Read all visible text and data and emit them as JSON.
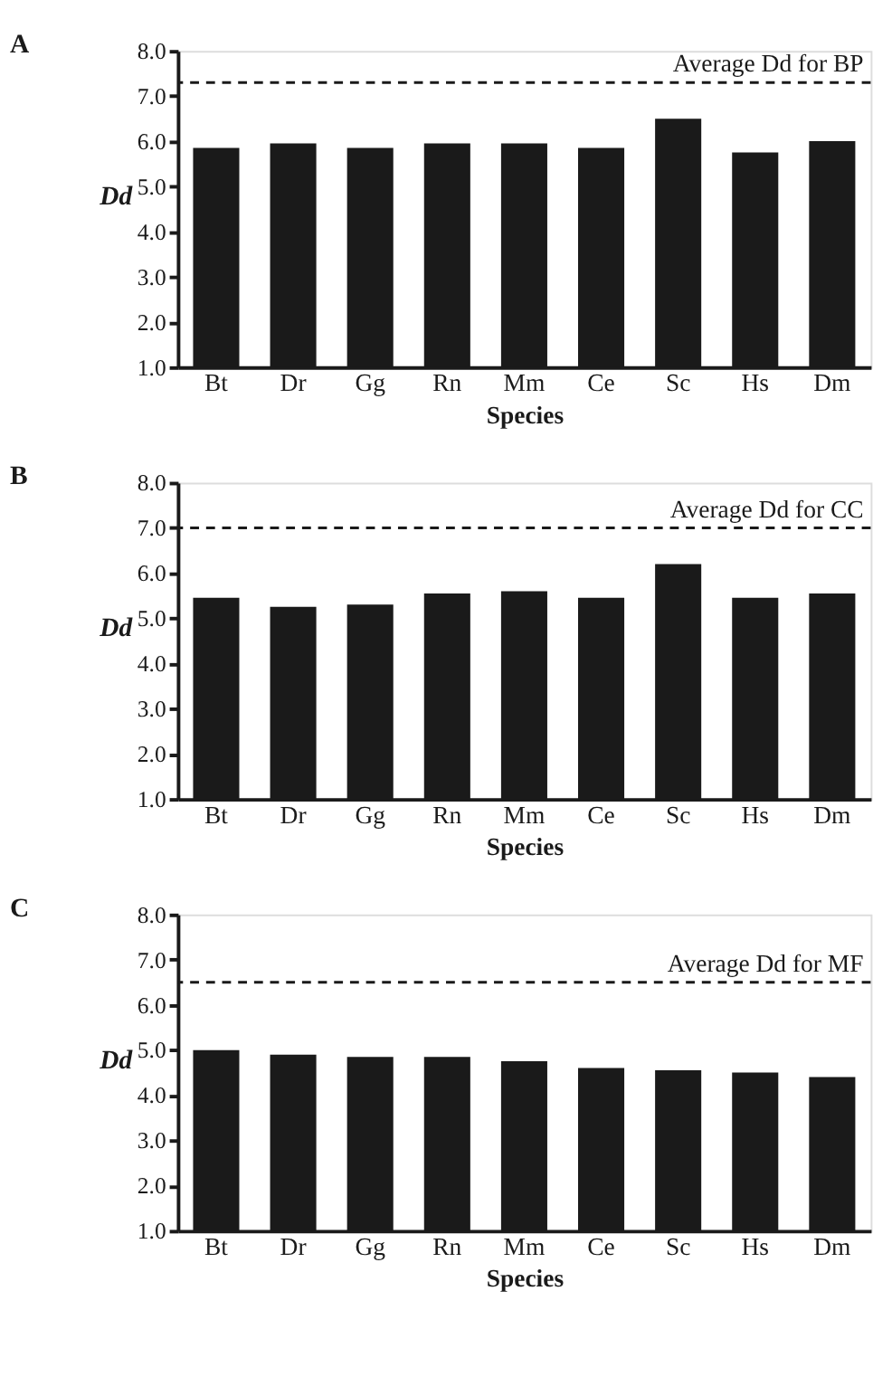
{
  "chart_data": [
    {
      "type": "bar",
      "title": "A",
      "xlabel": "Species",
      "ylabel": "Dd",
      "categories": [
        "Bt",
        "Dr",
        "Gg",
        "Rn",
        "Mm",
        "Ce",
        "Sc",
        "Hs",
        "Dm"
      ],
      "values": [
        5.85,
        5.95,
        5.85,
        5.95,
        5.95,
        5.85,
        6.5,
        5.75,
        6.0
      ],
      "color": "#1a1a1a",
      "ylim": [
        1,
        8
      ],
      "yticks": [
        {
          "value": 1,
          "label": "1.0"
        },
        {
          "value": 2,
          "label": "2.0"
        },
        {
          "value": 3,
          "label": "3.0"
        },
        {
          "value": 4,
          "label": "4.0"
        },
        {
          "value": 5,
          "label": "5.0"
        },
        {
          "value": 6,
          "label": "6.0"
        },
        {
          "value": 7,
          "label": "7.0"
        },
        {
          "value": 8,
          "label": "8.0"
        }
      ],
      "grid": false,
      "ref_lines": [
        {
          "axis": "y",
          "value": 7.3,
          "label": "Average Dd for BP",
          "line_style": "dashed",
          "color": "#1a1a1a"
        }
      ]
    },
    {
      "type": "bar",
      "title": "B",
      "xlabel": "Species",
      "ylabel": "Dd",
      "categories": [
        "Bt",
        "Dr",
        "Gg",
        "Rn",
        "Mm",
        "Ce",
        "Sc",
        "Hs",
        "Dm"
      ],
      "values": [
        5.45,
        5.25,
        5.3,
        5.55,
        5.6,
        5.45,
        6.2,
        5.45,
        5.55
      ],
      "color": "#1a1a1a",
      "ylim": [
        1,
        8
      ],
      "yticks": [
        {
          "value": 1,
          "label": "1.0"
        },
        {
          "value": 2,
          "label": "2.0"
        },
        {
          "value": 3,
          "label": "3.0"
        },
        {
          "value": 4,
          "label": "4.0"
        },
        {
          "value": 5,
          "label": "5.0"
        },
        {
          "value": 6,
          "label": "6.0"
        },
        {
          "value": 7,
          "label": "7.0"
        },
        {
          "value": 8,
          "label": "8.0"
        }
      ],
      "grid": false,
      "ref_lines": [
        {
          "axis": "y",
          "value": 7.0,
          "label": "Average Dd for CC",
          "line_style": "dashed",
          "color": "#1a1a1a"
        }
      ]
    },
    {
      "type": "bar",
      "title": "C",
      "xlabel": "Species",
      "ylabel": "Dd",
      "categories": [
        "Bt",
        "Dr",
        "Gg",
        "Rn",
        "Mm",
        "Ce",
        "Sc",
        "Hs",
        "Dm"
      ],
      "values": [
        5.0,
        4.9,
        4.85,
        4.85,
        4.75,
        4.6,
        4.55,
        4.5,
        4.4
      ],
      "color": "#1a1a1a",
      "ylim": [
        1,
        8
      ],
      "yticks": [
        {
          "value": 1,
          "label": "1.0"
        },
        {
          "value": 2,
          "label": "2.0"
        },
        {
          "value": 3,
          "label": "3.0"
        },
        {
          "value": 4,
          "label": "4.0"
        },
        {
          "value": 5,
          "label": "5.0"
        },
        {
          "value": 6,
          "label": "6.0"
        },
        {
          "value": 7,
          "label": "7.0"
        },
        {
          "value": 8,
          "label": "8.0"
        }
      ],
      "grid": false,
      "ref_lines": [
        {
          "axis": "y",
          "value": 6.5,
          "label": "Average Dd for MF",
          "line_style": "dashed",
          "color": "#1a1a1a"
        }
      ]
    }
  ]
}
